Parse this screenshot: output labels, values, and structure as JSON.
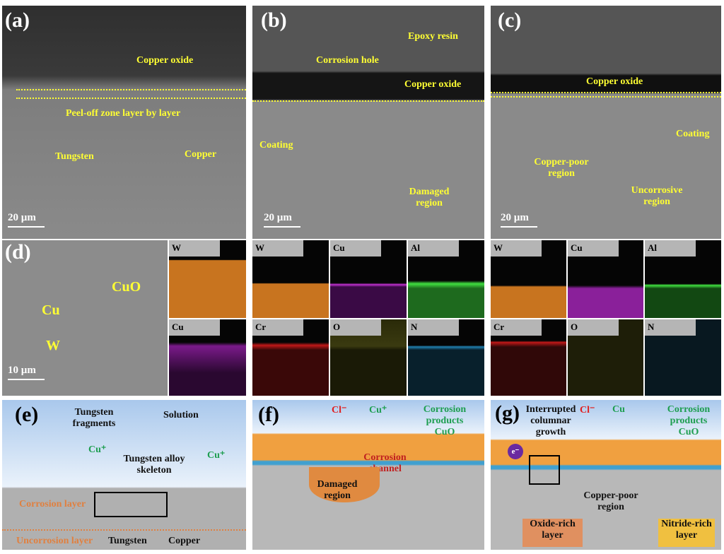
{
  "panels": {
    "a": {
      "label": "(a)",
      "notes": [
        "Copper oxide",
        "Peel-off zone layer by layer",
        "Tungsten",
        "Copper"
      ],
      "scale": "20 µm"
    },
    "b": {
      "label": "(b)",
      "notes": [
        "Epoxy resin",
        "Corrosion hole",
        "Copper oxide",
        "Coating",
        "Damaged region"
      ],
      "scale": "20 µm"
    },
    "c": {
      "label": "(c)",
      "notes": [
        "Copper oxide",
        "Coating",
        "Copper-poor region",
        "Uncorrosive region"
      ],
      "scale": "20 µm"
    },
    "d": {
      "label": "(d)",
      "notes": [
        "CuO",
        "Cu",
        "W"
      ],
      "scale": "10 µm",
      "maps": [
        "W",
        "Cu"
      ]
    },
    "b_eds": [
      "W",
      "Cu",
      "Al",
      "Cr",
      "O",
      "N"
    ],
    "c_eds": [
      "W",
      "Cu",
      "Al",
      "Cr",
      "O",
      "N"
    ],
    "e": {
      "label": "(e)",
      "notes": [
        "Tungsten fragments",
        "Solution",
        "Cu⁺",
        "Tungsten alloy skeleton",
        "Cu⁺",
        "Corrosion layer",
        "Uncorrosion layer",
        "Tungsten",
        "Copper"
      ]
    },
    "f": {
      "label": "(f)",
      "notes": [
        "Cl⁻",
        "Cu⁺",
        "Corrosion products CuO",
        "Corrosion channel",
        "Damaged region"
      ]
    },
    "g": {
      "label": "(g)",
      "notes": [
        "Interrupted columnar growth",
        "Cl⁻",
        "Cu",
        "Corrosion products CuO",
        "e⁻",
        "Copper-poor region",
        "Oxide-rich layer",
        "Nitride-rich layer"
      ]
    }
  },
  "colors": {
    "annotation": "#ffff33",
    "W": "#d9822b",
    "Cu": "#b020c0",
    "Al": "#30c030",
    "Cr": "#c01818",
    "O": "#b0b020",
    "N": "#2080b0",
    "coating": "#f0a040",
    "substrate": "#b8b8b8"
  }
}
